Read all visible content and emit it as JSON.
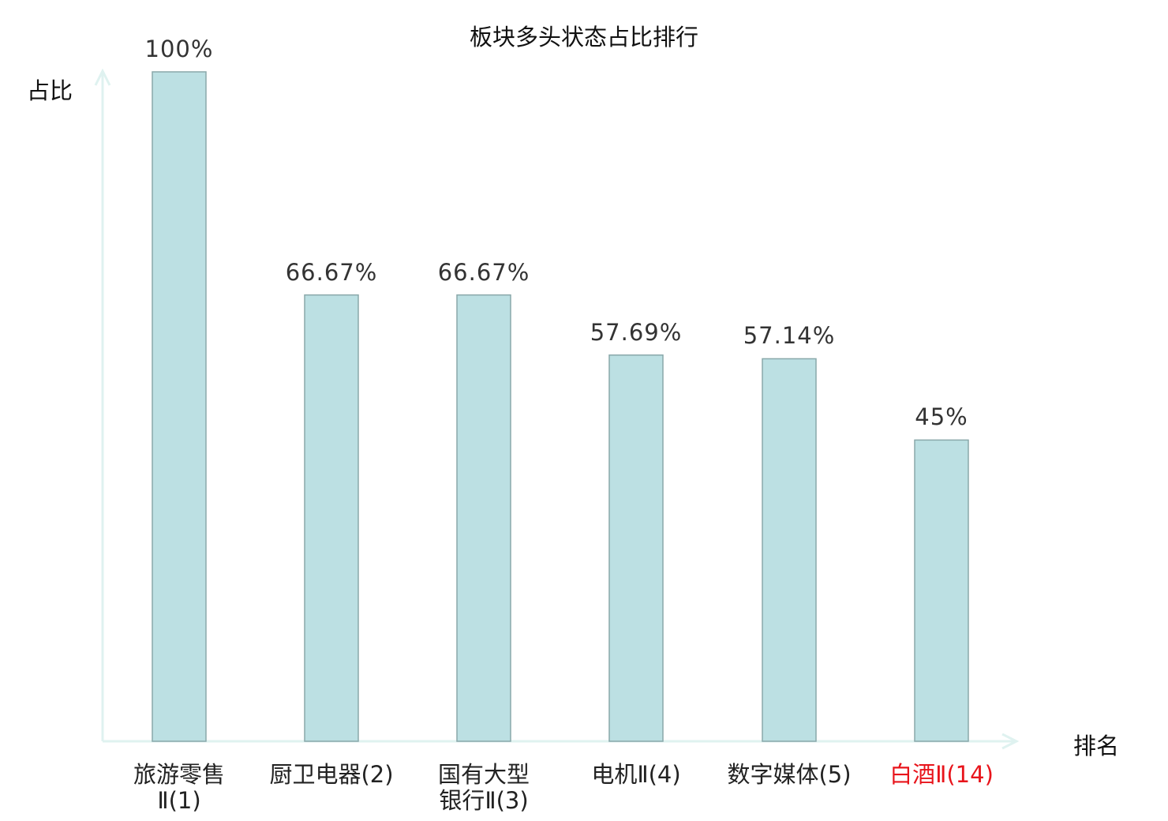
{
  "chart_data": {
    "type": "bar",
    "title": "板块多头状态占比排行",
    "xlabel": "排名",
    "ylabel": "占比",
    "categories": [
      "旅游零售Ⅱ(1)",
      "厨卫电器(2)",
      "国有大型银行Ⅱ(3)",
      "电机Ⅱ(4)",
      "数字媒体(5)",
      "白酒Ⅱ(14)"
    ],
    "category_lines": [
      [
        "旅游零售",
        "Ⅱ(1)"
      ],
      [
        "厨卫电器(2)"
      ],
      [
        "国有大型",
        "银行Ⅱ(3)"
      ],
      [
        "电机Ⅱ(4)"
      ],
      [
        "数字媒体(5)"
      ],
      [
        "白酒Ⅱ(14)"
      ]
    ],
    "values": [
      100,
      66.67,
      66.67,
      57.69,
      57.14,
      45
    ],
    "value_labels": [
      "100%",
      "66.67%",
      "66.67%",
      "57.69%",
      "57.14%",
      "45%"
    ],
    "highlighted_category_index": 5,
    "ylim": [
      0,
      100
    ],
    "grid": false,
    "colors": {
      "bar_fill": "#bce0e3",
      "bar_stroke": "#8aa8aa",
      "axis": "#dff2f0",
      "highlight": "#e8141b"
    }
  }
}
